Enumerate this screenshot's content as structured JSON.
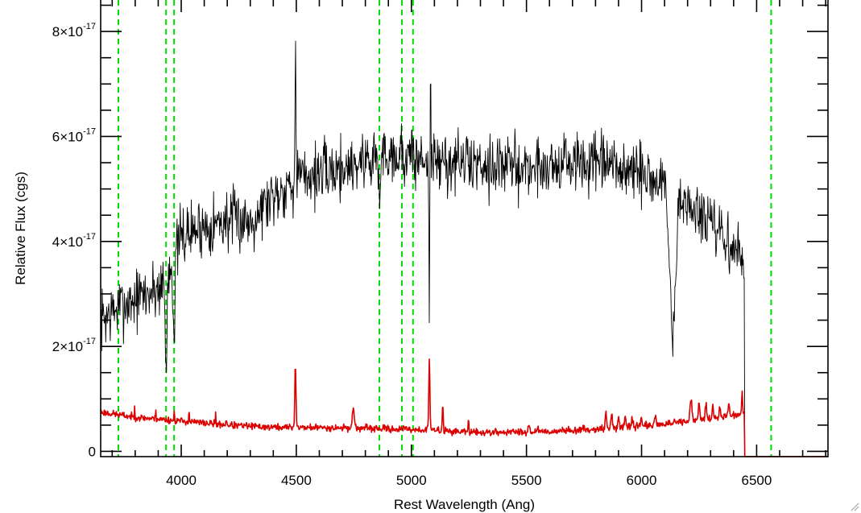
{
  "chart_data": {
    "type": "line",
    "title": "",
    "xlabel": "Rest Wavelength (Ang)",
    "ylabel": "Relative Flux (cgs)",
    "xlim": [
      3650,
      6810
    ],
    "ylim": [
      -1e-18,
      8.6e-17
    ],
    "x_ticks": [
      {
        "value": 4000,
        "label": "4000"
      },
      {
        "value": 4500,
        "label": "4500"
      },
      {
        "value": 5000,
        "label": "5000"
      },
      {
        "value": 5500,
        "label": "5500"
      },
      {
        "value": 6000,
        "label": "6000"
      },
      {
        "value": 6500,
        "label": "6500"
      }
    ],
    "x_minor_step": 100,
    "y_ticks": [
      {
        "value": 0,
        "label": "0"
      },
      {
        "value": 2e-17,
        "label": "2×10",
        "exp": "-17"
      },
      {
        "value": 4e-17,
        "label": "4×10",
        "exp": "-17"
      },
      {
        "value": 6e-17,
        "label": "6×10",
        "exp": "-17"
      },
      {
        "value": 8e-17,
        "label": "8×10",
        "exp": "-17"
      }
    ],
    "y_minor_step": 5e-18,
    "grid": false,
    "legend": "none",
    "reference_lines": {
      "color": "#00dd00",
      "style": "dashed",
      "x": [
        3727,
        3934,
        3969,
        4861,
        4959,
        5007,
        6563
      ]
    },
    "series": [
      {
        "color": "#000000",
        "seed": 7,
        "noise": 4.5e-18,
        "end_x": 6448,
        "after_end_value": -1e-18,
        "continuum": [
          [
            3650,
            2.5e-17
          ],
          [
            3750,
            2.8e-17
          ],
          [
            3850,
            3e-17
          ],
          [
            3900,
            3.1e-17
          ],
          [
            3960,
            3.6e-17
          ],
          [
            4000,
            4.1e-17
          ],
          [
            4100,
            4.3e-17
          ],
          [
            4200,
            4.4e-17
          ],
          [
            4300,
            4.4e-17
          ],
          [
            4400,
            4.9e-17
          ],
          [
            4500,
            5.2e-17
          ],
          [
            4700,
            5.4e-17
          ],
          [
            4900,
            5.7e-17
          ],
          [
            5100,
            5.5e-17
          ],
          [
            5300,
            5.5e-17
          ],
          [
            5500,
            5.4e-17
          ],
          [
            5700,
            5.5e-17
          ],
          [
            5900,
            5.4e-17
          ],
          [
            6100,
            5.1e-17
          ],
          [
            6300,
            4.3e-17
          ],
          [
            6450,
            3.6e-17
          ]
        ],
        "features": [
          {
            "x": 3934,
            "dy": -1.8e-17,
            "w": 4
          },
          {
            "x": 3969,
            "dy": -1.5e-17,
            "w": 4
          },
          {
            "x": 4496,
            "dy": 2.9e-17,
            "w": 1.6
          },
          {
            "x": 4862,
            "dy": -9e-18,
            "w": 4
          },
          {
            "x": 5078,
            "dy": -3.2e-17,
            "w": 1.4
          },
          {
            "x": 5083,
            "dy": 1.7e-17,
            "w": 1.6
          },
          {
            "x": 6135,
            "dy": -2.8e-17,
            "w": 12
          }
        ]
      },
      {
        "color": "#dd0000",
        "seed": 23,
        "noise": 5e-19,
        "end_x": 6448,
        "after_end_value": -1e-18,
        "continuum": [
          [
            3650,
            7.5e-18
          ],
          [
            3800,
            6.5e-18
          ],
          [
            4000,
            5.8e-18
          ],
          [
            4200,
            5e-18
          ],
          [
            4400,
            4.6e-18
          ],
          [
            4700,
            4.5e-18
          ],
          [
            5000,
            4.2e-18
          ],
          [
            5300,
            3.6e-18
          ],
          [
            5600,
            3.8e-18
          ],
          [
            5900,
            4.5e-18
          ],
          [
            6100,
            5.2e-18
          ],
          [
            6300,
            6.2e-18
          ],
          [
            6440,
            7.2e-18
          ]
        ],
        "features": [
          {
            "x": 3798,
            "dy": 2.8e-18,
            "w": 1
          },
          {
            "x": 3889,
            "dy": 2.5e-18,
            "w": 1
          },
          {
            "x": 3970,
            "dy": 2.2e-18,
            "w": 1
          },
          {
            "x": 4034,
            "dy": 2.8e-18,
            "w": 1
          },
          {
            "x": 4150,
            "dy": 2.5e-18,
            "w": 1
          },
          {
            "x": 4196,
            "dy": 8e-19,
            "w": 3
          },
          {
            "x": 4496,
            "dy": 1.25e-17,
            "w": 2.5
          },
          {
            "x": 4748,
            "dy": 4e-18,
            "w": 4
          },
          {
            "x": 5078,
            "dy": 1.35e-17,
            "w": 2.5
          },
          {
            "x": 5136,
            "dy": 5.5e-18,
            "w": 2
          },
          {
            "x": 5248,
            "dy": 2.5e-18,
            "w": 1.5
          },
          {
            "x": 5510,
            "dy": 1.5e-18,
            "w": 3
          },
          {
            "x": 5550,
            "dy": 1e-18,
            "w": 3
          },
          {
            "x": 5845,
            "dy": 3e-18,
            "w": 3
          },
          {
            "x": 5870,
            "dy": 2.5e-18,
            "w": 3
          },
          {
            "x": 5900,
            "dy": 2.2e-18,
            "w": 3
          },
          {
            "x": 5930,
            "dy": 2e-18,
            "w": 3
          },
          {
            "x": 5960,
            "dy": 1.8e-18,
            "w": 3
          },
          {
            "x": 6000,
            "dy": 1.5e-18,
            "w": 3
          },
          {
            "x": 6060,
            "dy": 1.5e-18,
            "w": 4
          },
          {
            "x": 6215,
            "dy": 4e-18,
            "w": 4
          },
          {
            "x": 6250,
            "dy": 3.5e-18,
            "w": 3
          },
          {
            "x": 6280,
            "dy": 3e-18,
            "w": 3
          },
          {
            "x": 6310,
            "dy": 2.5e-18,
            "w": 3
          },
          {
            "x": 6340,
            "dy": 2.2e-18,
            "w": 3
          },
          {
            "x": 6380,
            "dy": 2.5e-18,
            "w": 3
          },
          {
            "x": 6437,
            "dy": 4.5e-18,
            "w": 2
          }
        ]
      }
    ]
  }
}
